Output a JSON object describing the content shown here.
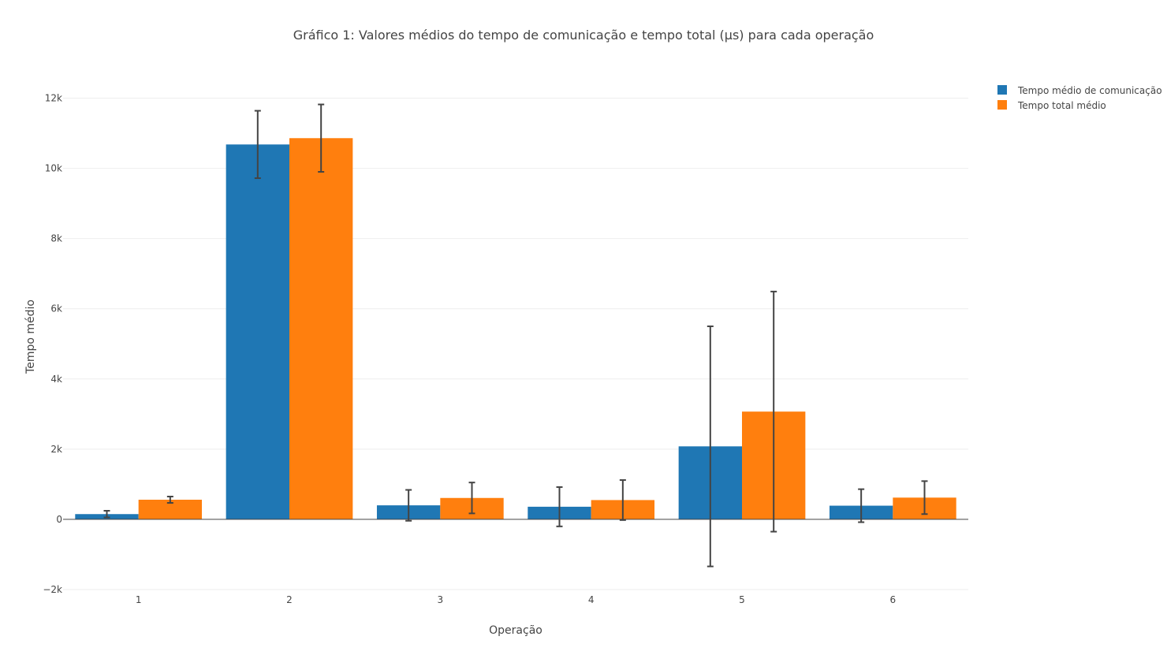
{
  "chart_data": {
    "type": "bar",
    "title": "Gráfico 1: Valores médios do tempo de comunicação e tempo total (µs) para cada operação",
    "xlabel": "Operação",
    "ylabel": "Tempo médio",
    "categories": [
      "1",
      "2",
      "3",
      "4",
      "5",
      "6"
    ],
    "ylim": [
      -2000,
      12000
    ],
    "yticks": [
      -2000,
      0,
      2000,
      4000,
      6000,
      8000,
      10000,
      12000
    ],
    "ytick_labels": [
      "−2k",
      "0",
      "2k",
      "4k",
      "6k",
      "8k",
      "10k",
      "12k"
    ],
    "grid": true,
    "legend_position": "top-right",
    "series": [
      {
        "name": "Tempo médio de comunicação",
        "color": "#1f77b4",
        "values": [
          150,
          10680,
          400,
          360,
          2080,
          390
        ],
        "error": [
          95,
          960,
          440,
          560,
          3420,
          470
        ]
      },
      {
        "name": "Tempo total médio",
        "color": "#ff7f0e",
        "values": [
          560,
          10860,
          610,
          550,
          3070,
          620
        ],
        "error": [
          90,
          960,
          440,
          570,
          3420,
          470
        ]
      }
    ]
  }
}
